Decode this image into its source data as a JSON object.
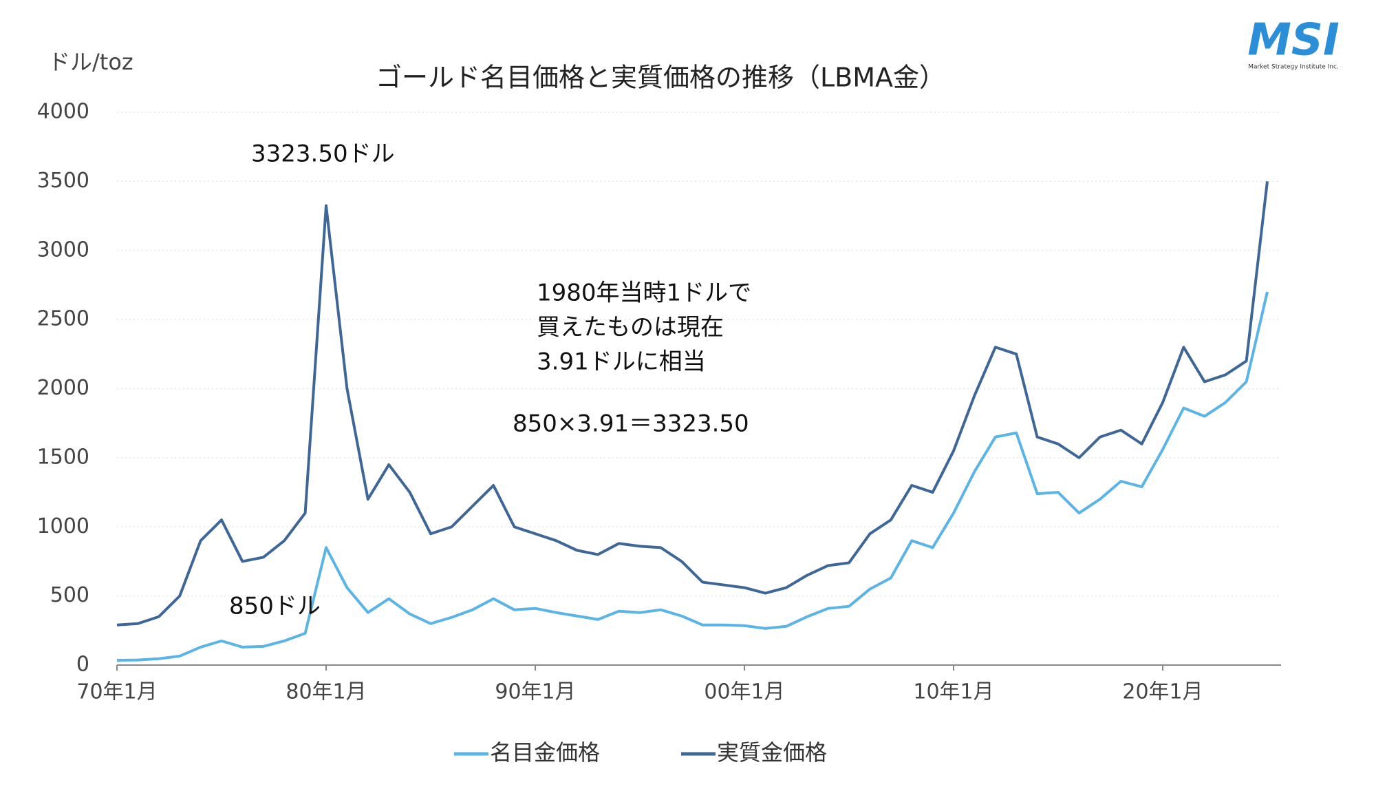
{
  "chart_data": {
    "type": "line",
    "title": "ゴールド名目価格と実質価格の推移（LBMA金）",
    "y_label": "ドル/toz",
    "logo": "MSI",
    "logo_sub": "Market Strategy Institute Inc.",
    "annotations": [
      "3323.50ドル",
      "850ドル",
      "1980年当時1ドルで",
      "買えたものは現在",
      "3.91ドルに相当",
      "850×3.91＝3323.50"
    ],
    "categories": [
      "70年1月",
      null,
      null,
      null,
      null,
      null,
      null,
      null,
      null,
      null,
      "80年1月",
      null,
      null,
      null,
      null,
      null,
      null,
      null,
      null,
      null,
      "90年1月",
      null,
      null,
      null,
      null,
      null,
      null,
      null,
      null,
      null,
      "00年1月",
      null,
      null,
      null,
      null,
      null,
      null,
      null,
      null,
      null,
      "10年1月",
      null,
      null,
      null,
      null,
      null,
      null,
      null,
      null,
      null,
      "20年1月",
      null,
      null,
      null,
      null,
      null
    ],
    "series": [
      {
        "name": "名目金価格",
        "color": "#5ab4e6",
        "values": [
          35,
          37,
          46,
          65,
          130,
          175,
          130,
          135,
          175,
          230,
          850,
          560,
          380,
          480,
          370,
          300,
          345,
          400,
          480,
          400,
          410,
          380,
          355,
          330,
          390,
          380,
          400,
          355,
          290,
          290,
          285,
          265,
          280,
          350,
          410,
          425,
          550,
          630,
          900,
          850,
          1100,
          1400,
          1650,
          1680,
          1240,
          1250,
          1100,
          1200,
          1330,
          1290,
          1560,
          1860,
          1800,
          1900,
          2050,
          2700
        ]
      },
      {
        "name": "実質金価格",
        "color": "#3e6696",
        "values": [
          290,
          300,
          350,
          500,
          900,
          1050,
          750,
          780,
          900,
          1100,
          3323.5,
          2000,
          1200,
          1450,
          1250,
          950,
          1000,
          1150,
          1300,
          1000,
          950,
          900,
          830,
          800,
          880,
          860,
          850,
          750,
          600,
          580,
          560,
          520,
          560,
          650,
          720,
          740,
          950,
          1050,
          1300,
          1250,
          1550,
          1950,
          2300,
          2250,
          1650,
          1600,
          1500,
          1650,
          1700,
          1600,
          1900,
          2300,
          2050,
          2100,
          2200,
          3500
        ]
      }
    ],
    "ylim": [
      0,
      4000
    ],
    "yticks": [
      0,
      500,
      1000,
      1500,
      2000,
      2500,
      3000,
      3500,
      4000
    ],
    "grid": true
  }
}
